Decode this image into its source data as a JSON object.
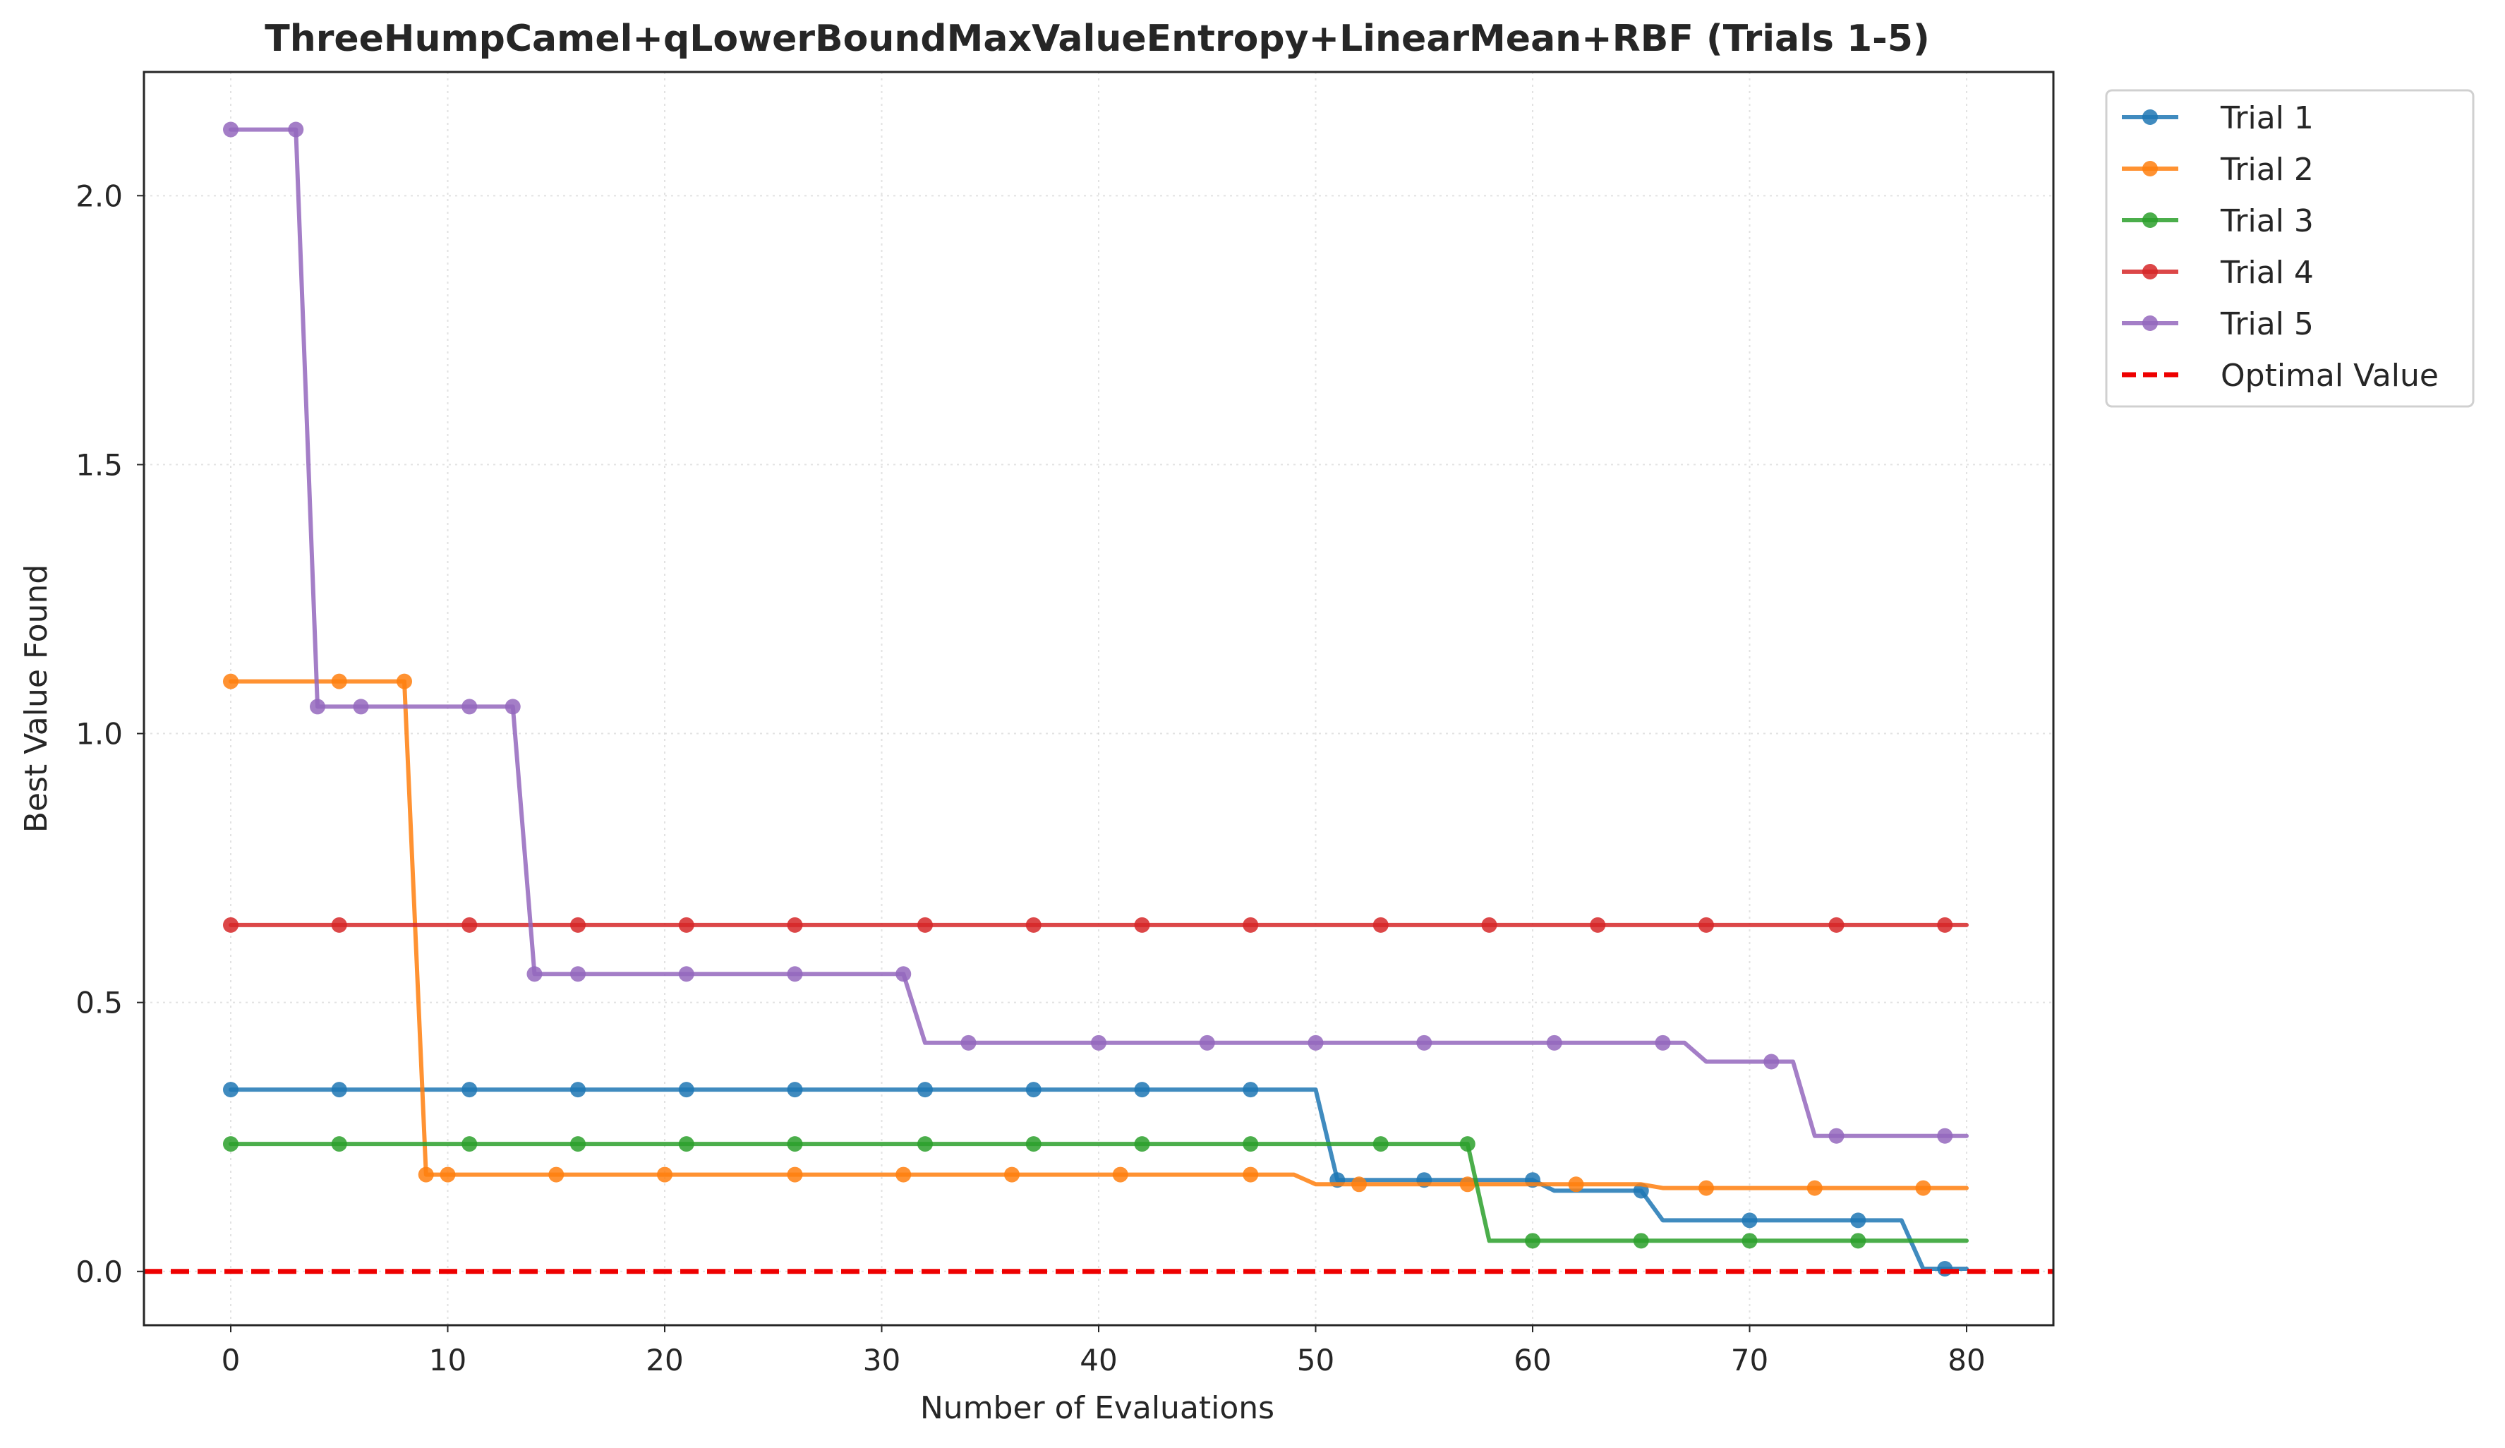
{
  "chart_data": {
    "type": "line",
    "title": "ThreeHumpCamel+qLowerBoundMaxValueEntropy+LinearMean+RBF (Trials 1-5)",
    "xlabel": "Number of Evaluations",
    "ylabel": "Best Value Found",
    "xlim": [
      -4,
      84
    ],
    "ylim": [
      -0.1,
      2.23
    ],
    "x_ticks": [
      0,
      10,
      20,
      30,
      40,
      50,
      60,
      70,
      80
    ],
    "x_tick_labels": [
      "0",
      "10",
      "20",
      "30",
      "40",
      "50",
      "60",
      "70",
      "80"
    ],
    "y_ticks": [
      0.0,
      0.5,
      1.0,
      1.5,
      2.0
    ],
    "y_tick_labels": [
      "0.0",
      "0.5",
      "1.0",
      "1.5",
      "2.0"
    ],
    "grid": true,
    "legend_position": "outside-top-right",
    "series": [
      {
        "name": "Trial 1",
        "color": "#1f77b4",
        "steps": [
          [
            0,
            0.338
          ],
          [
            50,
            0.338
          ],
          [
            51,
            0.17
          ],
          [
            60,
            0.17
          ],
          [
            61,
            0.15
          ],
          [
            65,
            0.15
          ],
          [
            66,
            0.095
          ],
          [
            77,
            0.095
          ],
          [
            78,
            0.005
          ],
          [
            80,
            0.005
          ]
        ],
        "markers": [
          0,
          5,
          11,
          16,
          21,
          26,
          32,
          37,
          42,
          47,
          51,
          55,
          60,
          65,
          70,
          75,
          79
        ]
      },
      {
        "name": "Trial 2",
        "color": "#ff7f0e",
        "steps": [
          [
            0,
            1.097
          ],
          [
            8,
            1.097
          ],
          [
            9,
            0.18
          ],
          [
            49,
            0.18
          ],
          [
            50,
            0.162
          ],
          [
            65,
            0.162
          ],
          [
            66,
            0.155
          ],
          [
            80,
            0.155
          ]
        ],
        "markers": [
          0,
          5,
          8,
          9,
          10,
          15,
          20,
          26,
          31,
          36,
          41,
          47,
          52,
          57,
          62,
          68,
          73,
          78
        ]
      },
      {
        "name": "Trial 3",
        "color": "#2ca02c",
        "steps": [
          [
            0,
            0.237
          ],
          [
            57,
            0.237
          ],
          [
            58,
            0.057
          ],
          [
            80,
            0.057
          ]
        ],
        "markers": [
          0,
          5,
          11,
          16,
          21,
          26,
          32,
          37,
          42,
          47,
          53,
          57,
          60,
          65,
          70,
          75
        ]
      },
      {
        "name": "Trial 4",
        "color": "#d62728",
        "steps": [
          [
            0,
            0.644
          ],
          [
            80,
            0.644
          ]
        ],
        "markers": [
          0,
          5,
          11,
          16,
          21,
          26,
          32,
          37,
          42,
          47,
          53,
          58,
          63,
          68,
          74,
          79
        ]
      },
      {
        "name": "Trial 5",
        "color": "#9467bd",
        "steps": [
          [
            0,
            2.123
          ],
          [
            3,
            2.123
          ],
          [
            4,
            1.05
          ],
          [
            13,
            1.05
          ],
          [
            14,
            0.553
          ],
          [
            31,
            0.553
          ],
          [
            32,
            0.425
          ],
          [
            67,
            0.425
          ],
          [
            68,
            0.39
          ],
          [
            72,
            0.39
          ],
          [
            73,
            0.252
          ],
          [
            80,
            0.252
          ]
        ],
        "markers": [
          0,
          3,
          4,
          6,
          11,
          13,
          14,
          16,
          21,
          26,
          31,
          34,
          40,
          45,
          50,
          55,
          61,
          66,
          71,
          74,
          79
        ]
      }
    ],
    "reference_line": {
      "name": "Optimal Value",
      "y": 0.0,
      "color": "#ee0000",
      "style": "dashed"
    }
  }
}
